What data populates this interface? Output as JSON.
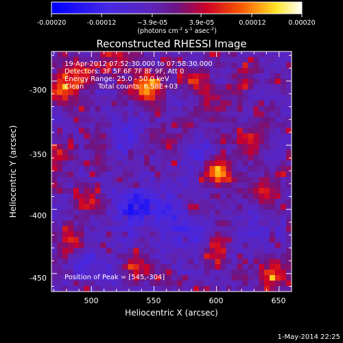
{
  "chart_data": {
    "type": "heatmap",
    "title": "Reconstructed RHESSI Image",
    "xlabel": "Heliocentric X (arcsec)",
    "ylabel": "Heliocentric Y (arcsec)",
    "xlim": [
      468,
      660
    ],
    "ylim": [
      -464,
      -277
    ],
    "x_ticks": [
      500,
      550,
      600,
      650
    ],
    "y_ticks": [
      -300,
      -350,
      -400,
      -450
    ],
    "colorbar": {
      "label_line1": "(photons cm",
      "label_line2": "-2",
      "label_line3": " s",
      "label_line4": "-1",
      "label_line5": " asec",
      "label_line6": "-2",
      "label_line7": ")",
      "tick_labels": [
        "-0.00020",
        "-0.00012",
        "−3.9e-05",
        "3.9e-05",
        "0.00012",
        "0.00020"
      ],
      "tick_values": [
        -0.0002,
        -0.00012,
        -3.9e-05,
        3.9e-05,
        0.00012,
        0.0002
      ],
      "range": [
        -0.0002,
        0.0002
      ],
      "colortable": "blue-purple-red-yellow-white"
    },
    "annotations": {
      "time_range": "19-Apr-2012 07:52:30.000 to 07:58:30.000",
      "detectors": "Detectors: 3F 5F 6F 7F 8F 9F, Att 0",
      "energy": "Energy Range: 25.0 - 50.0 keV",
      "algorithm": "Clean",
      "counts": "Total counts: 6.58E+03",
      "peak": "Position of Peak = [545,-304]"
    },
    "peak": {
      "x": 545,
      "y": -304
    },
    "sources": [
      {
        "x": 545,
        "y": -304,
        "value": 0.0002
      },
      {
        "x": 602,
        "y": -370,
        "value": 0.00019
      },
      {
        "x": 478,
        "y": -306,
        "value": 0.00014
      },
      {
        "x": 490,
        "y": -293,
        "value": 0.00011
      },
      {
        "x": 522,
        "y": -283,
        "value": 0.0001
      },
      {
        "x": 583,
        "y": -300,
        "value": 8e-05
      },
      {
        "x": 625,
        "y": -345,
        "value": 0.0001
      },
      {
        "x": 640,
        "y": -383,
        "value": 9e-05
      },
      {
        "x": 500,
        "y": -395,
        "value": 8e-05
      },
      {
        "x": 485,
        "y": -425,
        "value": 8e-05
      },
      {
        "x": 540,
        "y": -445,
        "value": 8e-05
      },
      {
        "x": 602,
        "y": -430,
        "value": 8e-05
      },
      {
        "x": 645,
        "y": -450,
        "value": 0.00013
      },
      {
        "x": 560,
        "y": -345,
        "value": 6e-05
      },
      {
        "x": 598,
        "y": -320,
        "value": 7e-05
      },
      {
        "x": 473,
        "y": -360,
        "value": 7e-05
      },
      {
        "x": 620,
        "y": -300,
        "value": 6e-05
      },
      {
        "x": 505,
        "y": -345,
        "value": 6e-05
      }
    ],
    "sinks": [
      {
        "x": 530,
        "y": -400,
        "value": -0.0001
      },
      {
        "x": 555,
        "y": -395,
        "value": -8e-05
      },
      {
        "x": 525,
        "y": -340,
        "value": -7e-05
      },
      {
        "x": 575,
        "y": -420,
        "value": -7e-05
      },
      {
        "x": 500,
        "y": -440,
        "value": -6e-05
      },
      {
        "x": 590,
        "y": -360,
        "value": -5e-05
      },
      {
        "x": 630,
        "y": -420,
        "value": -5e-05
      }
    ]
  },
  "footer": {
    "date": "1-May-2014 22:25"
  }
}
